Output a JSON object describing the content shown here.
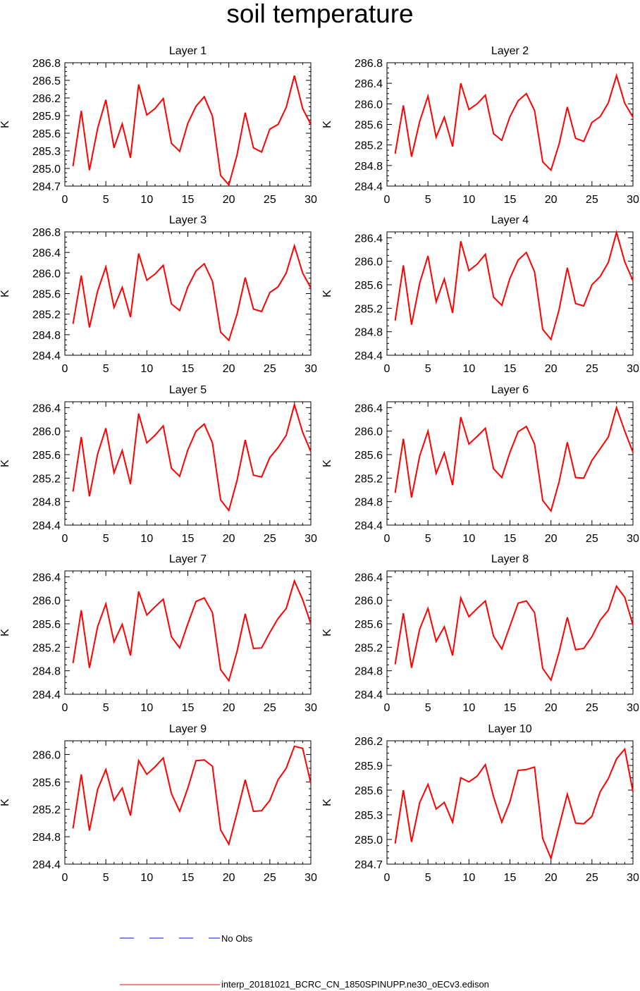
{
  "title": "soil temperature",
  "ylabel": "K",
  "colors": {
    "model": "#ff0000",
    "obs": "#0000ff",
    "axis": "#000000"
  },
  "legend": {
    "obs_label": "No Obs",
    "model_label": "interp_20181021_BCRC_CN_1850SPINUPP.ne30_oECv3.edison"
  },
  "chart_data": [
    {
      "type": "line",
      "title": "Layer 1",
      "xlabel": "",
      "ylabel": "K",
      "xlim": [
        0,
        30
      ],
      "xticks": [
        0,
        5,
        10,
        15,
        20,
        25,
        30
      ],
      "ylim": [
        284.7,
        286.8
      ],
      "yticks": [
        "284.7",
        "285.0",
        "285.3",
        "285.6",
        "285.9",
        "286.2",
        "286.5",
        "286.8"
      ],
      "series": [
        {
          "name": "interp_20181021_BCRC_CN_1850SPINUPP.ne30_oECv3.edison",
          "x": [
            1,
            2,
            3,
            4,
            5,
            6,
            7,
            8,
            9,
            10,
            11,
            12,
            13,
            14,
            15,
            16,
            17,
            18,
            19,
            20,
            21,
            22,
            23,
            24,
            25,
            26,
            27,
            28,
            29,
            30
          ],
          "y": [
            285.04,
            285.98,
            284.97,
            285.68,
            286.17,
            285.35,
            285.76,
            285.18,
            286.43,
            285.91,
            286.02,
            286.19,
            285.43,
            285.29,
            285.77,
            286.06,
            286.22,
            285.89,
            284.88,
            284.72,
            285.23,
            285.95,
            285.35,
            285.28,
            285.67,
            285.75,
            286.04,
            286.58,
            286.02,
            285.75
          ]
        }
      ]
    },
    {
      "type": "line",
      "title": "Layer 2",
      "xlabel": "",
      "ylabel": "K",
      "xlim": [
        0,
        30
      ],
      "xticks": [
        0,
        5,
        10,
        15,
        20,
        25,
        30
      ],
      "ylim": [
        284.4,
        286.8
      ],
      "yticks": [
        "284.4",
        "284.8",
        "285.2",
        "285.6",
        "286.0",
        "286.4",
        "286.8"
      ],
      "series": [
        {
          "name": "interp_20181021_BCRC_CN_1850SPINUPP.ne30_oECv3.edison",
          "x": [
            1,
            2,
            3,
            4,
            5,
            6,
            7,
            8,
            9,
            10,
            11,
            12,
            13,
            14,
            15,
            16,
            17,
            18,
            19,
            20,
            21,
            22,
            23,
            24,
            25,
            26,
            27,
            28,
            29,
            30
          ],
          "y": [
            285.03,
            285.97,
            284.97,
            285.66,
            286.15,
            285.35,
            285.74,
            285.17,
            286.4,
            285.89,
            286.0,
            286.17,
            285.42,
            285.29,
            285.75,
            286.06,
            286.2,
            285.87,
            284.87,
            284.71,
            285.22,
            285.94,
            285.33,
            285.27,
            285.64,
            285.75,
            286.02,
            286.55,
            286.01,
            285.74
          ]
        }
      ]
    },
    {
      "type": "line",
      "title": "Layer 3",
      "xlabel": "",
      "ylabel": "K",
      "xlim": [
        0,
        30
      ],
      "xticks": [
        0,
        5,
        10,
        15,
        20,
        25,
        30
      ],
      "ylim": [
        284.4,
        286.8
      ],
      "yticks": [
        "284.4",
        "284.8",
        "285.2",
        "285.6",
        "286.0",
        "286.4",
        "286.8"
      ],
      "series": [
        {
          "name": "interp_20181021_BCRC_CN_1850SPINUPP.ne30_oECv3.edison",
          "x": [
            1,
            2,
            3,
            4,
            5,
            6,
            7,
            8,
            9,
            10,
            11,
            12,
            13,
            14,
            15,
            16,
            17,
            18,
            19,
            20,
            21,
            22,
            23,
            24,
            25,
            26,
            27,
            28,
            29,
            30
          ],
          "y": [
            285.01,
            285.95,
            284.94,
            285.65,
            286.12,
            285.33,
            285.72,
            285.14,
            286.38,
            285.86,
            285.98,
            286.15,
            285.4,
            285.27,
            285.73,
            286.04,
            286.18,
            285.84,
            284.85,
            284.69,
            285.2,
            285.91,
            285.3,
            285.25,
            285.62,
            285.73,
            286.0,
            286.53,
            286.0,
            285.71
          ]
        }
      ]
    },
    {
      "type": "line",
      "title": "Layer 4",
      "xlabel": "",
      "ylabel": "K",
      "xlim": [
        0,
        30
      ],
      "xticks": [
        0,
        5,
        10,
        15,
        20,
        25,
        30
      ],
      "ylim": [
        284.4,
        286.5
      ],
      "yticks": [
        "284.4",
        "284.8",
        "285.2",
        "285.6",
        "286.0",
        "286.4"
      ],
      "series": [
        {
          "name": "interp_20181021_BCRC_CN_1850SPINUPP.ne30_oECv3.edison",
          "x": [
            1,
            2,
            3,
            4,
            5,
            6,
            7,
            8,
            9,
            10,
            11,
            12,
            13,
            14,
            15,
            16,
            17,
            18,
            19,
            20,
            21,
            22,
            23,
            24,
            25,
            26,
            27,
            28,
            29,
            30
          ],
          "y": [
            284.99,
            285.93,
            284.92,
            285.63,
            286.09,
            285.31,
            285.7,
            285.12,
            286.34,
            285.84,
            285.95,
            286.12,
            285.39,
            285.25,
            285.71,
            286.02,
            286.15,
            285.82,
            284.84,
            284.67,
            285.18,
            285.89,
            285.28,
            285.24,
            285.6,
            285.74,
            285.98,
            286.49,
            285.99,
            285.67
          ]
        }
      ]
    },
    {
      "type": "line",
      "title": "Layer 5",
      "xlabel": "",
      "ylabel": "K",
      "xlim": [
        0,
        30
      ],
      "xticks": [
        0,
        5,
        10,
        15,
        20,
        25,
        30
      ],
      "ylim": [
        284.4,
        286.5
      ],
      "yticks": [
        "284.4",
        "284.8",
        "285.2",
        "285.6",
        "286.0",
        "286.4"
      ],
      "series": [
        {
          "name": "interp_20181021_BCRC_CN_1850SPINUPP.ne30_oECv3.edison",
          "x": [
            1,
            2,
            3,
            4,
            5,
            6,
            7,
            8,
            9,
            10,
            11,
            12,
            13,
            14,
            15,
            16,
            17,
            18,
            19,
            20,
            21,
            22,
            23,
            24,
            25,
            26,
            27,
            28,
            29,
            30
          ],
          "y": [
            284.97,
            285.9,
            284.89,
            285.61,
            286.05,
            285.29,
            285.67,
            285.1,
            286.3,
            285.8,
            285.93,
            286.09,
            285.37,
            285.23,
            285.68,
            286.0,
            286.12,
            285.8,
            284.83,
            284.65,
            285.16,
            285.85,
            285.25,
            285.22,
            285.55,
            285.72,
            285.93,
            286.45,
            285.98,
            285.65
          ]
        }
      ]
    },
    {
      "type": "line",
      "title": "Layer 6",
      "xlabel": "",
      "ylabel": "K",
      "xlim": [
        0,
        30
      ],
      "xticks": [
        0,
        5,
        10,
        15,
        20,
        25,
        30
      ],
      "ylim": [
        284.4,
        286.5
      ],
      "yticks": [
        "284.4",
        "284.8",
        "285.2",
        "285.6",
        "286.0",
        "286.4"
      ],
      "series": [
        {
          "name": "interp_20181021_BCRC_CN_1850SPINUPP.ne30_oECv3.edison",
          "x": [
            1,
            2,
            3,
            4,
            5,
            6,
            7,
            8,
            9,
            10,
            11,
            12,
            13,
            14,
            15,
            16,
            17,
            18,
            19,
            20,
            21,
            22,
            23,
            24,
            25,
            26,
            27,
            28,
            29,
            30
          ],
          "y": [
            284.95,
            285.87,
            284.87,
            285.58,
            286.0,
            285.28,
            285.63,
            285.08,
            286.24,
            285.78,
            285.91,
            286.05,
            285.36,
            285.21,
            285.64,
            285.99,
            286.08,
            285.78,
            284.82,
            284.64,
            285.14,
            285.81,
            285.21,
            285.2,
            285.5,
            285.7,
            285.9,
            286.4,
            286.0,
            285.64
          ]
        }
      ]
    },
    {
      "type": "line",
      "title": "Layer 7",
      "xlabel": "",
      "ylabel": "K",
      "xlim": [
        0,
        30
      ],
      "xticks": [
        0,
        5,
        10,
        15,
        20,
        25,
        30
      ],
      "ylim": [
        284.4,
        286.5
      ],
      "yticks": [
        "284.4",
        "284.8",
        "285.2",
        "285.6",
        "286.0",
        "286.4"
      ],
      "series": [
        {
          "name": "interp_20181021_BCRC_CN_1850SPINUPP.ne30_oECv3.edison",
          "x": [
            1,
            2,
            3,
            4,
            5,
            6,
            7,
            8,
            9,
            10,
            11,
            12,
            13,
            14,
            15,
            16,
            17,
            18,
            19,
            20,
            21,
            22,
            23,
            24,
            25,
            26,
            27,
            28,
            29,
            30
          ],
          "y": [
            284.93,
            285.83,
            284.85,
            285.55,
            285.94,
            285.29,
            285.59,
            285.06,
            286.15,
            285.75,
            285.89,
            286.02,
            285.38,
            285.19,
            285.6,
            285.98,
            286.04,
            285.79,
            284.82,
            284.63,
            285.13,
            285.77,
            285.18,
            285.19,
            285.45,
            285.69,
            285.86,
            286.33,
            286.01,
            285.6
          ]
        }
      ]
    },
    {
      "type": "line",
      "title": "Layer 8",
      "xlabel": "",
      "ylabel": "K",
      "xlim": [
        0,
        30
      ],
      "xticks": [
        0,
        5,
        10,
        15,
        20,
        25,
        30
      ],
      "ylim": [
        284.4,
        286.5
      ],
      "yticks": [
        "284.4",
        "284.8",
        "285.2",
        "285.6",
        "286.0",
        "286.4"
      ],
      "series": [
        {
          "name": "interp_20181021_BCRC_CN_1850SPINUPP.ne30_oECv3.edison",
          "x": [
            1,
            2,
            3,
            4,
            5,
            6,
            7,
            8,
            9,
            10,
            11,
            12,
            13,
            14,
            15,
            16,
            17,
            18,
            19,
            20,
            21,
            22,
            23,
            24,
            25,
            26,
            27,
            28,
            29,
            30
          ],
          "y": [
            284.91,
            285.78,
            284.85,
            285.51,
            285.86,
            285.3,
            285.55,
            285.06,
            286.04,
            285.72,
            285.86,
            285.99,
            285.39,
            285.17,
            285.56,
            285.95,
            285.99,
            285.79,
            284.84,
            284.64,
            285.12,
            285.71,
            285.16,
            285.18,
            285.38,
            285.66,
            285.83,
            286.24,
            286.05,
            285.58
          ]
        }
      ]
    },
    {
      "type": "line",
      "title": "Layer 9",
      "xlabel": "",
      "ylabel": "K",
      "xlim": [
        0,
        30
      ],
      "xticks": [
        0,
        5,
        10,
        15,
        20,
        25,
        30
      ],
      "ylim": [
        284.4,
        286.2
      ],
      "yticks": [
        "284.4",
        "284.8",
        "285.2",
        "285.6",
        "286.0"
      ],
      "series": [
        {
          "name": "interp_20181021_BCRC_CN_1850SPINUPP.ne30_oECv3.edison",
          "x": [
            1,
            2,
            3,
            4,
            5,
            6,
            7,
            8,
            9,
            10,
            11,
            12,
            13,
            14,
            15,
            16,
            17,
            18,
            19,
            20,
            21,
            22,
            23,
            24,
            25,
            26,
            27,
            28,
            29,
            30
          ],
          "y": [
            284.92,
            285.71,
            284.89,
            285.49,
            285.78,
            285.33,
            285.51,
            285.11,
            285.91,
            285.71,
            285.82,
            285.95,
            285.43,
            285.17,
            285.51,
            285.91,
            285.92,
            285.83,
            284.9,
            284.69,
            285.15,
            285.63,
            285.17,
            285.18,
            285.33,
            285.63,
            285.8,
            286.12,
            286.09,
            285.58
          ]
        }
      ]
    },
    {
      "type": "line",
      "title": "Layer 10",
      "xlabel": "",
      "ylabel": "K",
      "xlim": [
        0,
        30
      ],
      "xticks": [
        0,
        5,
        10,
        15,
        20,
        25,
        30
      ],
      "ylim": [
        284.7,
        286.2
      ],
      "yticks": [
        "284.7",
        "285.0",
        "285.3",
        "285.6",
        "285.9",
        "286.2"
      ],
      "series": [
        {
          "name": "interp_20181021_BCRC_CN_1850SPINUPP.ne30_oECv3.edison",
          "x": [
            1,
            2,
            3,
            4,
            5,
            6,
            7,
            8,
            9,
            10,
            11,
            12,
            13,
            14,
            15,
            16,
            17,
            18,
            19,
            20,
            21,
            22,
            23,
            24,
            25,
            26,
            27,
            28,
            29,
            30
          ],
          "y": [
            284.95,
            285.6,
            284.97,
            285.45,
            285.67,
            285.37,
            285.45,
            285.21,
            285.75,
            285.7,
            285.77,
            285.91,
            285.52,
            285.21,
            285.46,
            285.84,
            285.85,
            285.88,
            285.01,
            284.77,
            285.16,
            285.55,
            285.2,
            285.19,
            285.28,
            285.58,
            285.74,
            285.98,
            286.1,
            285.58
          ]
        }
      ]
    }
  ]
}
